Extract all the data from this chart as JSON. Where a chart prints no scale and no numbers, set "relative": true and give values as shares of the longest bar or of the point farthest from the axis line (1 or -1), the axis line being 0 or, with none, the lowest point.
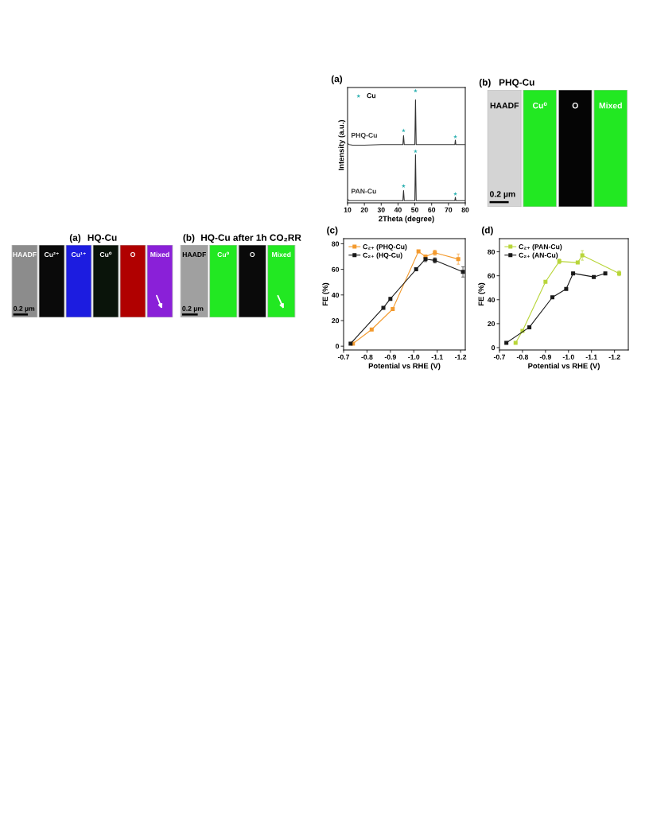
{
  "chart_data": [
    {
      "type": "other",
      "title": "(a)",
      "subtitle": "HQ-Cu",
      "categories": [
        "HAADF",
        "Cu²⁺",
        "Cu¹⁺",
        "Cu⁰",
        "O",
        "Mixed"
      ],
      "colors": [
        "#8c8c8c",
        "#0a0a0a",
        "#1c1ce0",
        "#0a140a",
        "#b00000",
        "#8a20d8"
      ],
      "annotations": [
        "0.2 µm"
      ]
    },
    {
      "type": "other",
      "title": "(b)",
      "subtitle": "HQ-Cu after 1h CO₂RR",
      "categories": [
        "HAADF",
        "Cu⁰",
        "O",
        "Mixed"
      ],
      "colors": [
        "#a0a0a0",
        "#22e822",
        "#0a0a0a",
        "#22e822"
      ],
      "annotations": [
        "0.2 µm"
      ]
    },
    {
      "type": "line",
      "title": "(a)",
      "xlabel": "2Theta (degree)",
      "ylabel": "Intensity (a.u.)",
      "relative": true,
      "xlim": [
        10,
        80
      ],
      "xticks": [
        10,
        20,
        30,
        40,
        50,
        60,
        70,
        80
      ],
      "tick_labels": "x",
      "legend": "top left",
      "series": [
        {
          "name": "PHQ-Cu",
          "type": "line",
          "color": "#333333",
          "x": [
            10,
            11,
            13,
            20,
            30,
            40,
            42.9,
            43.3,
            43.7,
            50.0,
            50.4,
            50.8,
            60,
            70,
            73.8,
            74.1,
            74.4,
            80
          ],
          "values": [
            0.53,
            0.52,
            0.515,
            0.515,
            0.52,
            0.52,
            0.52,
            0.6,
            0.52,
            0.52,
            0.92,
            0.52,
            0.52,
            0.52,
            0.52,
            0.56,
            0.52,
            0.52
          ]
        },
        {
          "name": "PAN-Cu",
          "type": "line",
          "color": "#333333",
          "x": [
            10,
            11,
            13,
            20,
            30,
            40,
            42.9,
            43.3,
            43.7,
            50.0,
            50.4,
            50.8,
            60,
            70,
            73.8,
            74.1,
            74.4,
            80
          ],
          "values": [
            0.03,
            0.02,
            0.02,
            0.02,
            0.02,
            0.02,
            0.02,
            0.11,
            0.02,
            0.02,
            0.43,
            0.02,
            0.02,
            0.02,
            0.02,
            0.05,
            0.02,
            0.02
          ]
        },
        {
          "name": "Cu",
          "type": "scatter",
          "marker": "star",
          "color": "#2ab0b0",
          "x": [
            43.3,
            50.4,
            74.1,
            43.3,
            50.4,
            74.1
          ],
          "values": [
            0.645,
            1,
            0.59,
            0.15,
            0.46,
            0.08
          ]
        }
      ]
    },
    {
      "type": "other",
      "title": "(b)",
      "subtitle": "PHQ-Cu",
      "categories": [
        "HAADF",
        "Cu⁰",
        "O",
        "Mixed"
      ],
      "colors": [
        "#d4d4d4",
        "#22e822",
        "#050505",
        "#22e822"
      ],
      "annotations": [
        "0.2 µm"
      ]
    },
    {
      "type": "line",
      "title": "(c)",
      "xlabel": "Potential vs RHE (V)",
      "ylabel": "FE (%)",
      "xlim": [
        -0.7,
        -1.22
      ],
      "xticks": [
        -0.7,
        -0.8,
        -0.9,
        {
          "value": -1.0,
          "label": "-1.0"
        },
        -1.1,
        -1.2
      ],
      "ylim": [
        -3,
        84
      ],
      "yticks": [
        0,
        20,
        40,
        60,
        80
      ],
      "legend": "top left",
      "marker": "square",
      "line_style": "solid",
      "series": [
        {
          "name": "C₂₊ (PHQ-Cu)",
          "color": "#f39a2e",
          "x": [
            -0.74,
            -0.82,
            -0.91,
            -1.02,
            -1.05,
            -1.09,
            -1.19
          ],
          "values": [
            2,
            13,
            29,
            74,
            70,
            73,
            68
          ],
          "errors": [
            null,
            null,
            null,
            1,
            1,
            2,
            4
          ]
        },
        {
          "name": "C₂₊ (HQ-Cu)",
          "color": "#1a1a1a",
          "x": [
            -0.73,
            -0.87,
            -0.9,
            -1.01,
            -1.05,
            -1.09,
            -1.21
          ],
          "values": [
            2,
            30,
            37,
            60,
            68,
            67,
            58
          ],
          "errors": [
            null,
            null,
            null,
            null,
            2,
            2,
            4
          ]
        }
      ]
    },
    {
      "type": "line",
      "title": "(d)",
      "xlabel": "Potential vs RHE (V)",
      "ylabel": "FE (%)",
      "xlim": [
        -0.7,
        -1.26
      ],
      "xticks": [
        -0.7,
        -0.8,
        -0.9,
        {
          "value": -1.0,
          "label": "-1.0"
        },
        -1.1,
        -1.2
      ],
      "ylim": [
        -2,
        91
      ],
      "yticks": [
        0,
        20,
        40,
        60,
        80
      ],
      "legend": "top left",
      "marker": "square",
      "line_style": "solid",
      "series": [
        {
          "name": "C₂₊ (PAN-Cu)",
          "color": "#b8d53a",
          "x": [
            -0.77,
            -0.8,
            -0.9,
            -0.96,
            -1.04,
            -1.06,
            -1.22
          ],
          "values": [
            4,
            14,
            55,
            72,
            71,
            77,
            62
          ],
          "errors": [
            null,
            null,
            null,
            2,
            null,
            4,
            2
          ]
        },
        {
          "name": "C₂₊ (AN-Cu)",
          "color": "#1a1a1a",
          "x": [
            -0.73,
            -0.83,
            -0.93,
            -0.99,
            -1.02,
            -1.11,
            -1.16
          ],
          "values": [
            4,
            17,
            42,
            49,
            62,
            59,
            62
          ]
        }
      ]
    }
  ]
}
